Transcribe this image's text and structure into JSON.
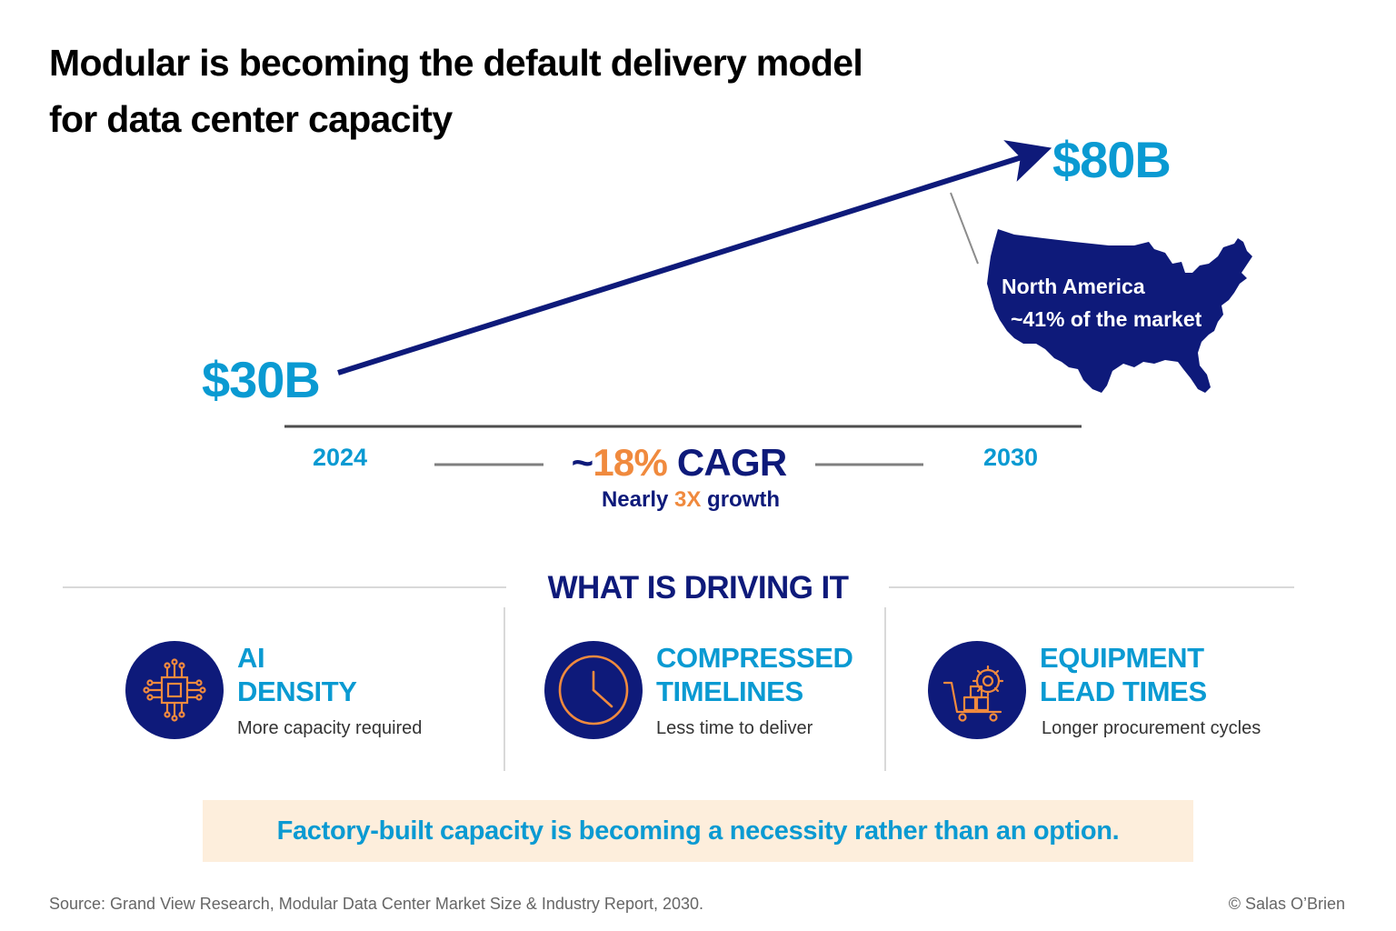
{
  "title": {
    "line1": "Modular is becoming the default delivery model",
    "line2": "for data center capacity"
  },
  "growth": {
    "start_value": "$30B",
    "end_value": "$80B",
    "start_year": "2024",
    "end_year": "2030",
    "cagr_prefix": "~",
    "cagr_value": "18%",
    "cagr_label": "CAGR",
    "note_prefix": "Nearly ",
    "note_multiple": "3X",
    "note_suffix": " growth",
    "region": {
      "name": "North America",
      "share": "~41% of the market"
    }
  },
  "drivers": {
    "heading": "WHAT IS DRIVING IT",
    "items": [
      {
        "title_line1": "AI",
        "title_line2": "DENSITY",
        "subtitle": "More capacity required",
        "icon": "ai-chip-icon"
      },
      {
        "title_line1": "COMPRESSED",
        "title_line2": "TIMELINES",
        "subtitle": "Less time to deliver",
        "icon": "clock-icon"
      },
      {
        "title_line1": "EQUIPMENT",
        "title_line2": "LEAD TIMES",
        "subtitle": "Longer procurement cycles",
        "icon": "cart-gear-icon"
      }
    ]
  },
  "callout": "Factory-built capacity is becoming a necessity rather than an option.",
  "footer": {
    "source": "Source: Grand View Research, Modular Data Center Market Size & Industry Report, 2030.",
    "copyright": "© Salas O’Brien"
  },
  "colors": {
    "navy": "#0e1a7a",
    "blue": "#0a9ad2",
    "orange": "#f08a3e",
    "callout_bg": "#fdeedc",
    "rule_gray": "#d9d9d9"
  }
}
